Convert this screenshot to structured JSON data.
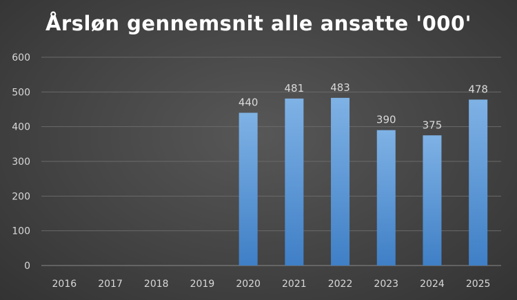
{
  "colors": {
    "bar_top": "#7fb2e5",
    "bar_bottom": "#3f7fc6",
    "gridline": "#6a6a6a",
    "text": "#d9d9d9",
    "title": "#ffffff"
  },
  "chart_data": {
    "type": "bar",
    "title": "Årsløn gennemsnit alle ansatte '000'",
    "xlabel": "",
    "ylabel": "",
    "categories": [
      "2016",
      "2017",
      "2018",
      "2019",
      "2020",
      "2021",
      "2022",
      "2023",
      "2024",
      "2025"
    ],
    "values": [
      0,
      0,
      0,
      0,
      440,
      481,
      483,
      390,
      375,
      478
    ],
    "data_labels": [
      "",
      "",
      "",
      "",
      "440",
      "481",
      "483",
      "390",
      "375",
      "478"
    ],
    "ylim": [
      0,
      600
    ],
    "yticks": [
      0,
      100,
      200,
      300,
      400,
      500,
      600
    ],
    "grid": true,
    "legend": "none"
  }
}
